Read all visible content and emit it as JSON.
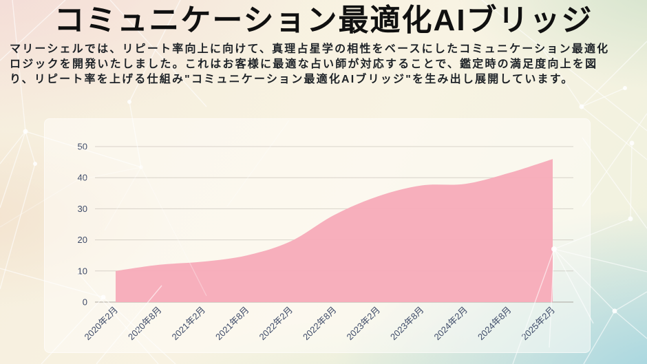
{
  "page": {
    "title": "コミュニケーション最適化AIブリッジ",
    "description_lines": [
      "マリーシェルでは、リピート率向上に向けて、真理占星学の相性をベースにしたコミュニケーション最適化",
      "ロジックを開発いたしました。これはお客様に最適な占い師が対応することで、鑑定時の満足度向上を図",
      "り、リピート率を上げる仕組み\"コミュニケーション最適化AIブリッジ\"を生み出し展開しています。"
    ]
  },
  "chart_data": {
    "type": "area",
    "title": "",
    "categories": [
      "2020年2月",
      "2020年8月",
      "2021年2月",
      "2021年8月",
      "2022年2月",
      "2022年8月",
      "2023年2月",
      "2023年8月",
      "2024年2月",
      "2024年8月",
      "2025年2月"
    ],
    "values": [
      10,
      12,
      13,
      15,
      19.5,
      28,
      34,
      37.5,
      38,
      41.5,
      46
    ],
    "xlabel": "",
    "ylabel": "",
    "ylim": [
      0,
      50
    ],
    "yticks": [
      0,
      10,
      20,
      30,
      40,
      50
    ],
    "grid": true,
    "legend": "none",
    "fill_color": "#f7acb9",
    "axis_text_color": "#3d4a68",
    "gridline_color": "#b5aea6",
    "zero_line_color": "#9b948c"
  },
  "colors": {
    "background_top_left": "#f4d9d6",
    "background_top_right": "#d3e3cc",
    "background_bottom_right": "#9ed3e0",
    "background_cream": "#f8f3e3",
    "panel": "rgba(255,253,249,0.52)",
    "network_lines": "#ffffff",
    "title_text": "#101010",
    "body_text": "#1d2227"
  }
}
